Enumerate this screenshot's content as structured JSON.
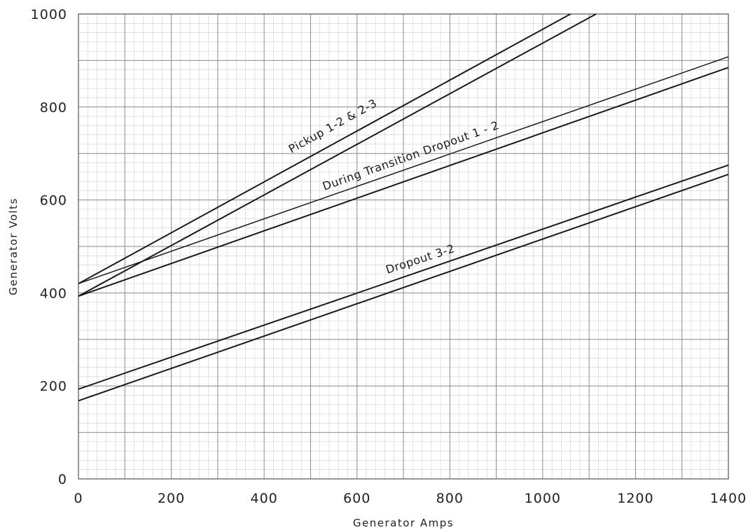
{
  "chart_data": {
    "type": "line",
    "xlabel": "Generator Amps",
    "ylabel": "Generator Volts",
    "xlim": [
      0,
      1400
    ],
    "ylim": [
      0,
      1000
    ],
    "xticks": [
      "0",
      "200",
      "400",
      "600",
      "800",
      "1000",
      "1200",
      "1400"
    ],
    "yticks": [
      "0",
      "200",
      "400",
      "600",
      "800",
      "1000"
    ],
    "grid": true,
    "annotations": [
      {
        "text": "Pickup 1-2 & 2-3"
      },
      {
        "text": "During Transition Dropout 1 - 2"
      },
      {
        "text": "Dropout 3-2"
      }
    ],
    "series": [
      {
        "x": [
          0,
          1060
        ],
        "y": [
          420,
          1000
        ]
      },
      {
        "x": [
          0,
          1115
        ],
        "y": [
          393,
          1000
        ]
      },
      {
        "x": [
          0,
          1400
        ],
        "y": [
          420,
          908
        ]
      },
      {
        "x": [
          0,
          1400
        ],
        "y": [
          393,
          885
        ]
      },
      {
        "x": [
          0,
          1400
        ],
        "y": [
          193,
          675
        ]
      },
      {
        "x": [
          0,
          1400
        ],
        "y": [
          168,
          655
        ]
      }
    ],
    "colors": {
      "grid_minor": "#cfcfcf",
      "grid_major": "#8a8a8a",
      "line": "#1a1a1a"
    }
  }
}
